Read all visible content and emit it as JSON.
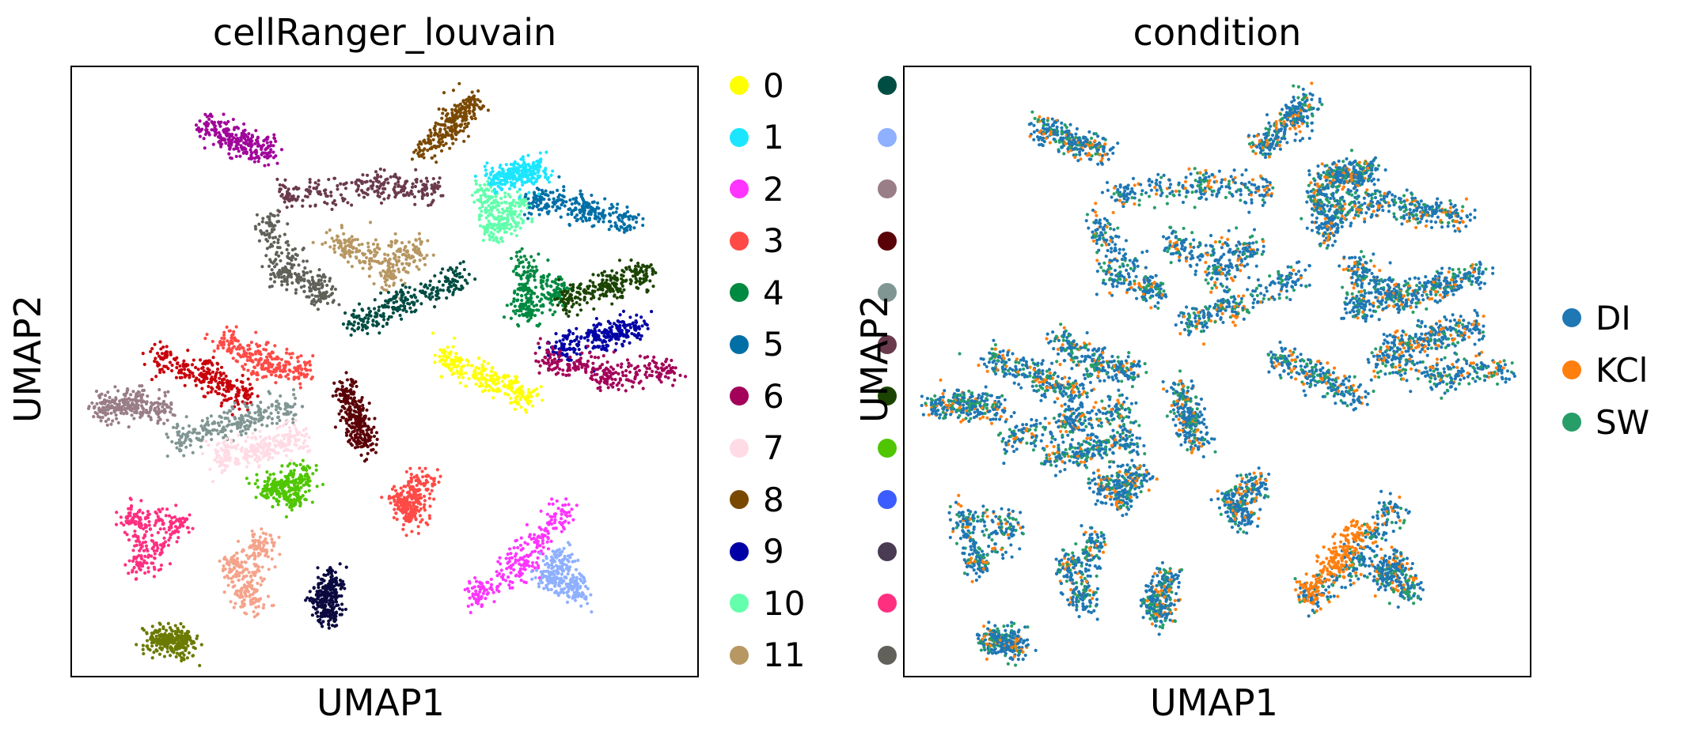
{
  "chart_data": [
    {
      "type": "scatter",
      "title": "cellRanger_louvain",
      "xlabel": "UMAP1",
      "ylabel": "UMAP2",
      "legend_placement": "right",
      "grid": false,
      "legend": [
        {
          "label": "0",
          "color": "#ffff00"
        },
        {
          "label": "1",
          "color": "#1ce6ff"
        },
        {
          "label": "2",
          "color": "#ff34ff"
        },
        {
          "label": "3",
          "color": "#ff4a46"
        },
        {
          "label": "4",
          "color": "#008941"
        },
        {
          "label": "5",
          "color": "#006fa6"
        },
        {
          "label": "6",
          "color": "#a30059"
        },
        {
          "label": "7",
          "color": "#ffdbe5"
        },
        {
          "label": "8",
          "color": "#7a4900"
        },
        {
          "label": "9",
          "color": "#0000a6"
        },
        {
          "label": "10",
          "color": "#63ffac"
        },
        {
          "label": "11",
          "color": "#b79762"
        },
        {
          "label": "",
          "color": "#004d43"
        },
        {
          "label": "",
          "color": "#8fb0ff"
        },
        {
          "label": "",
          "color": "#997d87"
        },
        {
          "label": "",
          "color": "#5a0007"
        },
        {
          "label": "",
          "color": "#809693"
        },
        {
          "label": "",
          "color": "#6a3a4c"
        },
        {
          "label": "",
          "color": "#1b4400"
        },
        {
          "label": "",
          "color": "#4fc601"
        },
        {
          "label": "",
          "color": "#3b5dff"
        },
        {
          "label": "",
          "color": "#4a3b53"
        },
        {
          "label": "",
          "color": "#ff2f80"
        },
        {
          "label": "",
          "color": "#61615a"
        }
      ],
      "clusters": [
        {
          "color": "#6a3a4c",
          "points": [
            [
              3.6,
              7.9
            ],
            [
              5.0,
              8.1
            ],
            [
              6.0,
              8.0
            ]
          ]
        },
        {
          "color": "#61615a",
          "points": [
            [
              3.3,
              7.4
            ],
            [
              3.5,
              6.6
            ],
            [
              4.2,
              6.3
            ]
          ]
        },
        {
          "color": "#b79762",
          "points": [
            [
              4.5,
              7.1
            ],
            [
              5.8,
              7.0
            ],
            [
              5.3,
              6.6
            ]
          ]
        },
        {
          "color": "#004d43",
          "points": [
            [
              5.5,
              6.1
            ],
            [
              4.8,
              5.8
            ],
            [
              6.5,
              6.5
            ]
          ]
        },
        {
          "color": "#63ffac",
          "points": [
            [
              6.9,
              7.9
            ],
            [
              7.5,
              7.7
            ],
            [
              7.1,
              7.3
            ]
          ]
        },
        {
          "color": "#006fa6",
          "points": [
            [
              7.8,
              7.8
            ],
            [
              8.6,
              7.7
            ],
            [
              9.3,
              7.5
            ]
          ]
        },
        {
          "color": "#008941",
          "points": [
            [
              7.6,
              6.7
            ],
            [
              8.2,
              6.3
            ],
            [
              7.6,
              6.0
            ]
          ]
        },
        {
          "color": "#1b4400",
          "points": [
            [
              8.3,
              6.2
            ],
            [
              9.0,
              6.4
            ],
            [
              9.6,
              6.6
            ]
          ]
        },
        {
          "color": "#0000a6",
          "points": [
            [
              8.2,
              5.4
            ],
            [
              8.9,
              5.6
            ],
            [
              9.5,
              5.7
            ]
          ]
        },
        {
          "color": "#a30059",
          "points": [
            [
              8.0,
              5.2
            ],
            [
              9.0,
              4.9
            ],
            [
              10.0,
              5.0
            ]
          ]
        },
        {
          "color": "#ffff00",
          "points": [
            [
              6.3,
              5.2
            ],
            [
              7.0,
              4.9
            ],
            [
              7.6,
              4.6
            ]
          ]
        },
        {
          "color": "#5a0007",
          "points": [
            [
              4.6,
              4.7
            ],
            [
              4.8,
              4.2
            ],
            [
              4.9,
              3.8
            ]
          ]
        },
        {
          "color": "#ff4a46",
          "points": [
            [
              2.6,
              5.5
            ],
            [
              3.2,
              5.1
            ],
            [
              3.8,
              5.0
            ]
          ]
        },
        {
          "color": "#c8000a",
          "points": [
            [
              1.5,
              5.2
            ],
            [
              2.3,
              4.9
            ],
            [
              2.9,
              4.6
            ]
          ]
        },
        {
          "color": "#997d87",
          "points": [
            [
              0.5,
              4.4
            ],
            [
              1.0,
              4.5
            ],
            [
              1.5,
              4.4
            ]
          ]
        },
        {
          "color": "#809693",
          "points": [
            [
              1.8,
              3.9
            ],
            [
              2.8,
              4.2
            ],
            [
              3.6,
              4.4
            ]
          ]
        },
        {
          "color": "#ffdbe5",
          "points": [
            [
              2.5,
              3.6
            ],
            [
              3.2,
              3.7
            ],
            [
              3.8,
              3.9
            ]
          ]
        },
        {
          "color": "#4fc601",
          "points": [
            [
              3.3,
              3.1
            ],
            [
              3.7,
              2.9
            ],
            [
              3.9,
              3.3
            ]
          ]
        },
        {
          "color": "#ff4a46",
          "points": [
            [
              5.5,
              2.9
            ],
            [
              5.9,
              3.2
            ],
            [
              5.7,
              2.6
            ]
          ]
        },
        {
          "color": "#ff34ff",
          "points": [
            [
              6.8,
              1.3
            ],
            [
              7.6,
              1.8
            ],
            [
              8.2,
              2.7
            ]
          ]
        },
        {
          "color": "#8fb0ff",
          "points": [
            [
              8.0,
              1.6
            ],
            [
              8.5,
              1.4
            ],
            [
              8.2,
              1.9
            ]
          ]
        },
        {
          "color": "#ff2f80",
          "points": [
            [
              1.0,
              2.6
            ],
            [
              1.8,
              2.5
            ],
            [
              1.2,
              1.8
            ]
          ]
        },
        {
          "color": "#f5a38b",
          "points": [
            [
              2.7,
              1.8
            ],
            [
              3.0,
              1.2
            ],
            [
              3.2,
              2.2
            ]
          ]
        },
        {
          "color": "#0a0a40",
          "points": [
            [
              4.2,
              1.2
            ],
            [
              4.4,
              1.6
            ],
            [
              4.3,
              1.0
            ]
          ]
        },
        {
          "color": "#6b7a00",
          "points": [
            [
              1.4,
              0.6
            ],
            [
              1.7,
              0.6
            ],
            [
              1.9,
              0.5
            ]
          ]
        },
        {
          "color": "#a1059b",
          "points": [
            [
              2.3,
              9.0
            ],
            [
              2.8,
              8.8
            ],
            [
              3.3,
              8.6
            ]
          ]
        },
        {
          "color": "#7a4900",
          "points": [
            [
              6.0,
              8.7
            ],
            [
              6.5,
              9.1
            ],
            [
              6.7,
              9.4
            ]
          ]
        },
        {
          "color": "#1ce6ff",
          "points": [
            [
              7.1,
              8.2
            ],
            [
              7.5,
              8.2
            ],
            [
              7.8,
              8.3
            ]
          ]
        }
      ]
    },
    {
      "type": "scatter",
      "title": "condition",
      "xlabel": "UMAP1",
      "ylabel": "UMAP2",
      "legend_placement": "right",
      "grid": false,
      "legend": [
        {
          "label": "DI",
          "color": "#1f77b4"
        },
        {
          "label": "KCl",
          "color": "#ff7f0e"
        },
        {
          "label": "SW",
          "color": "#279e68"
        }
      ],
      "density": [
        {
          "color": "#1f77b4",
          "share": 0.62
        },
        {
          "color": "#ff7f0e",
          "share": 0.16
        },
        {
          "color": "#279e68",
          "share": 0.22
        }
      ],
      "highlight_regions": [
        {
          "color": "#ff7f0e",
          "points": [
            [
              6.8,
              1.4
            ],
            [
              7.3,
              1.9
            ],
            [
              7.6,
              2.4
            ]
          ]
        }
      ]
    }
  ]
}
